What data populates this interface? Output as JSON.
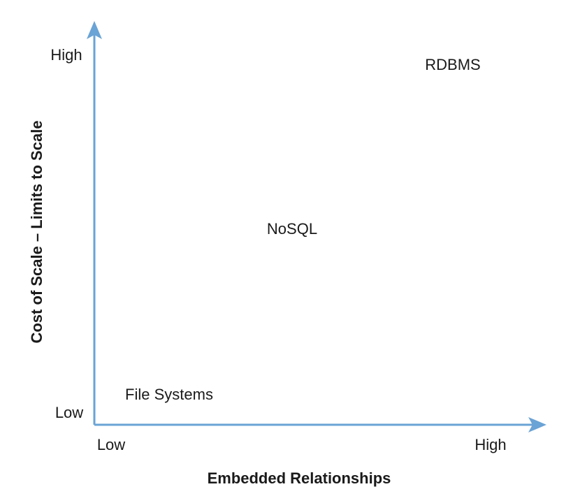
{
  "diagram": {
    "y_axis": {
      "title": "Cost of Scale – Limits to Scale",
      "high_label": "High",
      "low_label": "Low"
    },
    "x_axis": {
      "title": "Embedded Relationships",
      "low_label": "Low",
      "high_label": "High"
    },
    "items": [
      {
        "label": "RDBMS"
      },
      {
        "label": "NoSQL"
      },
      {
        "label": "File Systems"
      }
    ],
    "colors": {
      "axis": "#6aa3d5",
      "text": "#1a1a1a"
    }
  }
}
